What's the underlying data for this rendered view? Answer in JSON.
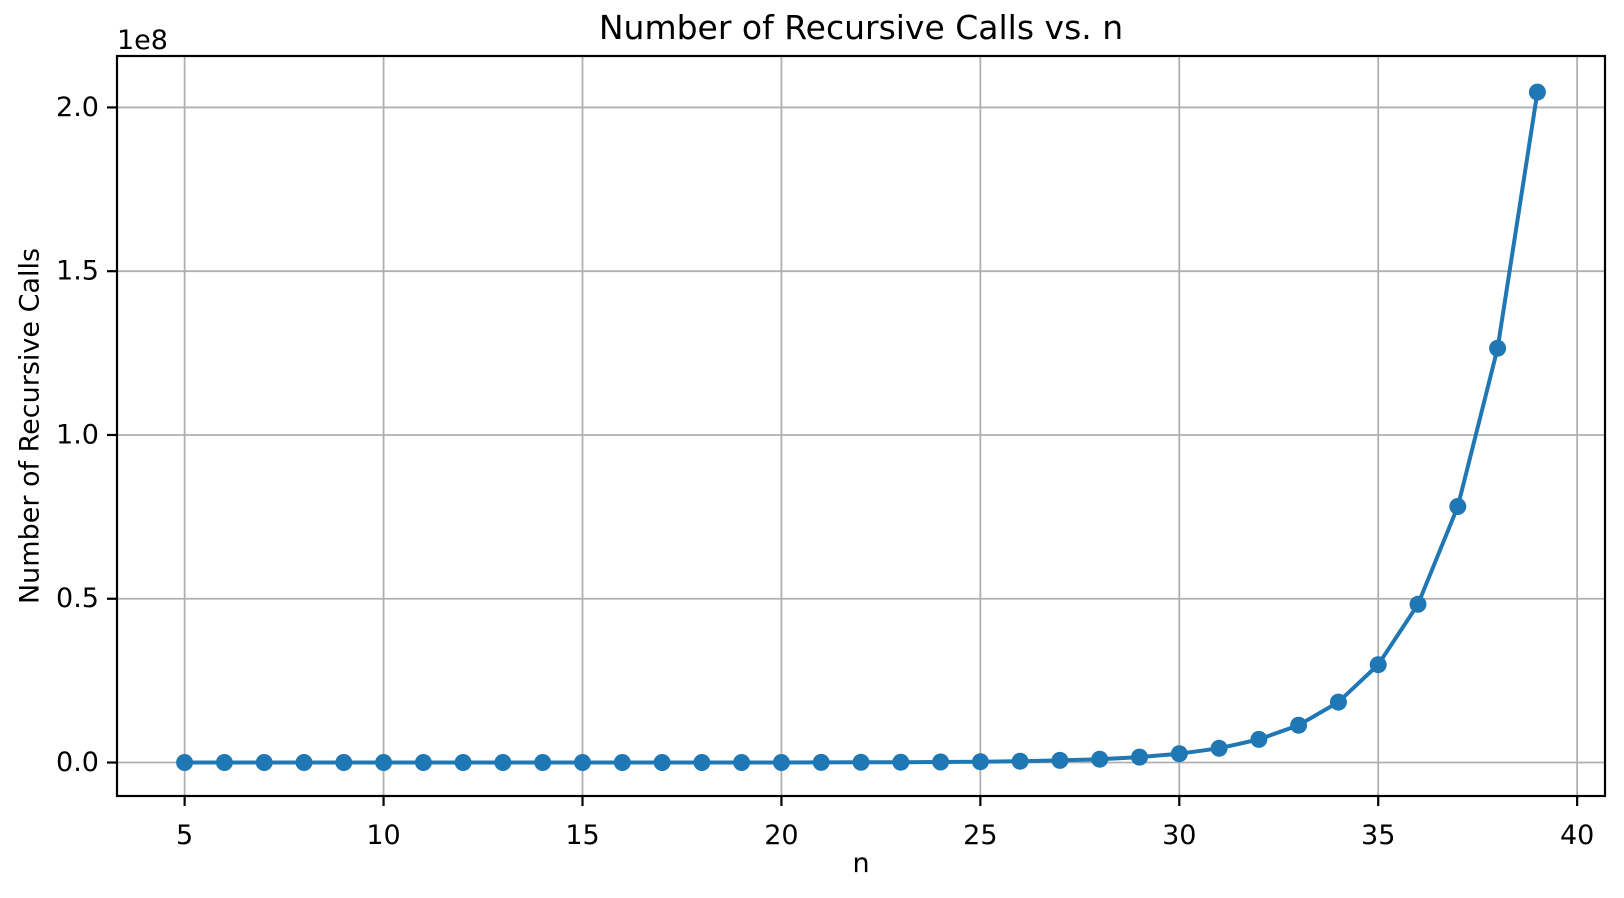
{
  "title": "Number of Recursive Calls vs. n",
  "xlabel": "n",
  "ylabel": "Number of Recursive Calls",
  "offset_text": "1e8",
  "colors": {
    "line": "#1f77b4",
    "marker": "#1f77b4",
    "grid": "#b0b0b0",
    "spine": "#000000",
    "text": "#000000",
    "background": "#ffffff"
  },
  "chart_data": {
    "type": "line",
    "title": "Number of Recursive Calls vs. n",
    "xlabel": "n",
    "ylabel": "Number of Recursive Calls",
    "grid": true,
    "legend_position": "none",
    "marker": "o",
    "x": [
      5,
      6,
      7,
      8,
      9,
      10,
      11,
      12,
      13,
      14,
      15,
      16,
      17,
      18,
      19,
      20,
      21,
      22,
      23,
      24,
      25,
      26,
      27,
      28,
      29,
      30,
      31,
      32,
      33,
      34,
      35,
      36,
      37,
      38,
      39
    ],
    "y": [
      15,
      25,
      41,
      67,
      109,
      177,
      287,
      465,
      753,
      1219,
      1973,
      3193,
      5167,
      8361,
      13529,
      21891,
      35421,
      57313,
      92735,
      150049,
      242785,
      392835,
      635621,
      1028457,
      1664079,
      2692537,
      4356617,
      7049155,
      11405773,
      18454929,
      29860703,
      48315633,
      78176337,
      126491971,
      204668309
    ],
    "xlim": [
      3.3,
      40.7
    ],
    "ylim": [
      -10220000,
      215700000
    ],
    "xticks": {
      "values": [
        5,
        10,
        15,
        20,
        25,
        30,
        35,
        40
      ],
      "labels": [
        "5",
        "10",
        "15",
        "20",
        "25",
        "30",
        "35",
        "40"
      ]
    },
    "yticks": {
      "values": [
        0,
        50000000,
        100000000,
        150000000,
        200000000
      ],
      "labels": [
        "0.0",
        "0.5",
        "1.0",
        "1.5",
        "2.0"
      ]
    },
    "y_offset_label": "1e8"
  }
}
